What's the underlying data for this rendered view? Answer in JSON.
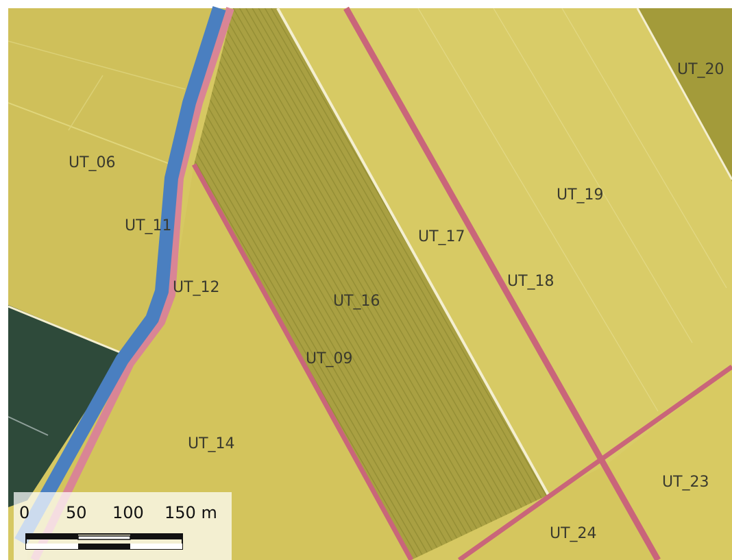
{
  "map": {
    "colors": {
      "field_yellow": "#d4c35a",
      "field_light": "#d9cb66",
      "field_olive": "#a9a042",
      "field_dark_olive": "#8f8a2e",
      "water_dark": "#2f4a3c",
      "canal_blue": "#4a7fc0",
      "boundary_pink": "#d07a8a",
      "boundary_white": "#f4efd0"
    },
    "labels": {
      "ut_06": "UT_06",
      "ut_11": "UT_11",
      "ut_12": "UT_12",
      "ut_14": "UT_14",
      "ut_16": "UT_16",
      "ut_09": "UT_09",
      "ut_17": "UT_17",
      "ut_18": "UT_18",
      "ut_19": "UT_19",
      "ut_20": "UT_20",
      "ut_23": "UT_23",
      "ut_24": "UT_24"
    }
  },
  "scale_bar": {
    "ticks": [
      "0",
      "50",
      "100",
      "150 m"
    ]
  }
}
